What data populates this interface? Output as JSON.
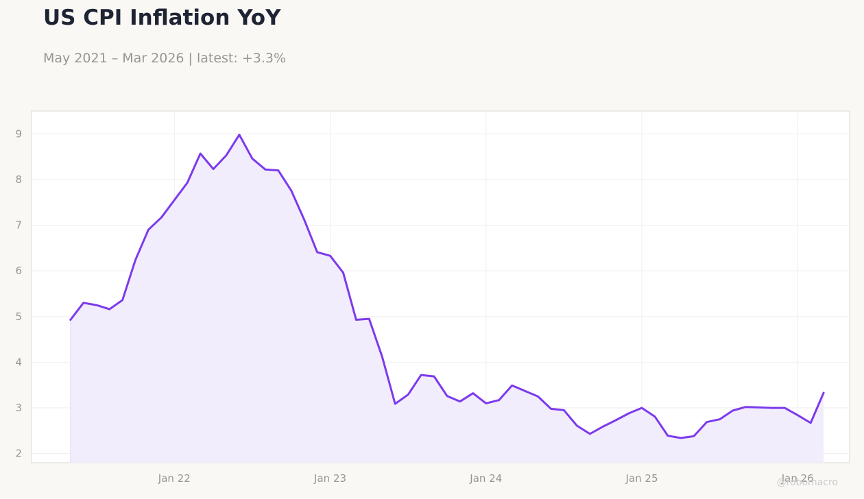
{
  "header": {
    "title": "US CPI Inflation YoY",
    "subtitle": "May 2021 – Mar 2026 | latest: +3.3%"
  },
  "watermark": "@robomacro",
  "colors": {
    "line": "#7c3aed",
    "fill": "#f2edfd",
    "background": "#f9f8f5",
    "plot_background": "#ffffff",
    "grid": "#efeeed",
    "frame": "#dddad3",
    "title": "#1e2433",
    "muted": "#999590"
  },
  "chart_data": {
    "type": "area",
    "title": "US CPI Inflation YoY",
    "subtitle": "May 2021 – Mar 2026 | latest: +3.3%",
    "xlabel": "",
    "ylabel": "",
    "x_start": "2021-05",
    "x_end": "2026-03",
    "ylim": [
      1.8,
      9.5
    ],
    "xlim": [
      "2021-02",
      "2026-05"
    ],
    "grid": true,
    "legend": "none",
    "x_ticks": [
      {
        "date": "2022-01",
        "label": "Jan 22"
      },
      {
        "date": "2023-01",
        "label": "Jan 23"
      },
      {
        "date": "2024-01",
        "label": "Jan 24"
      },
      {
        "date": "2025-01",
        "label": "Jan 25"
      },
      {
        "date": "2026-01",
        "label": "Jan 26"
      }
    ],
    "y_ticks": [
      2,
      3,
      4,
      5,
      6,
      7,
      8,
      9
    ],
    "series": [
      {
        "x": [
          "2021-05",
          "2021-06",
          "2021-07",
          "2021-08",
          "2021-09",
          "2021-10",
          "2021-11",
          "2021-12",
          "2022-01",
          "2022-02",
          "2022-03",
          "2022-04",
          "2022-05",
          "2022-06",
          "2022-07",
          "2022-08",
          "2022-09",
          "2022-10",
          "2022-11",
          "2022-12",
          "2023-01",
          "2023-02",
          "2023-03",
          "2023-04",
          "2023-05",
          "2023-06",
          "2023-07",
          "2023-08",
          "2023-09",
          "2023-10",
          "2023-11",
          "2023-12",
          "2024-01",
          "2024-02",
          "2024-03",
          "2024-04",
          "2024-05",
          "2024-06",
          "2024-07",
          "2024-08",
          "2024-09",
          "2024-10",
          "2024-11",
          "2024-12",
          "2025-01",
          "2025-02",
          "2025-03",
          "2025-04",
          "2025-05",
          "2025-06",
          "2025-07",
          "2025-08",
          "2025-09",
          "2025-10",
          "2025-11",
          "2025-12",
          "2026-01",
          "2026-02",
          "2026-03"
        ],
        "values": [
          4.93,
          5.3,
          5.25,
          5.16,
          5.36,
          6.24,
          6.9,
          7.17,
          7.55,
          7.93,
          8.57,
          8.23,
          8.53,
          8.98,
          8.46,
          8.22,
          8.2,
          7.76,
          7.12,
          6.41,
          6.33,
          5.96,
          4.93,
          4.95,
          4.12,
          3.09,
          3.29,
          3.72,
          3.69,
          3.26,
          3.14,
          3.32,
          3.1,
          3.17,
          3.49,
          3.37,
          3.25,
          2.98,
          2.95,
          2.61,
          2.43,
          2.59,
          2.73,
          2.88,
          3.0,
          2.81,
          2.39,
          2.34,
          2.38,
          2.69,
          2.75,
          2.94,
          3.02,
          3.01,
          3.0,
          3.0,
          2.84,
          2.67,
          3.33
        ]
      }
    ]
  }
}
